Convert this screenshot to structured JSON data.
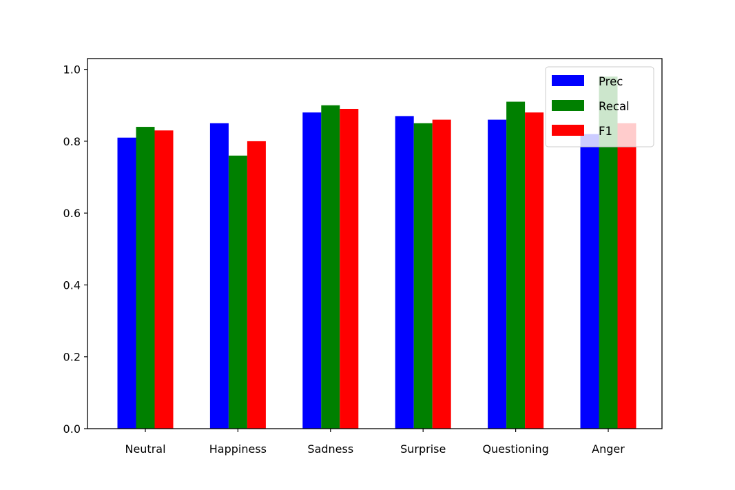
{
  "chart_data": {
    "type": "bar",
    "title": "",
    "xlabel": "",
    "ylabel": "",
    "categories": [
      "Neutral",
      "Happiness",
      "Sadness",
      "Surprise",
      "Questioning",
      "Anger"
    ],
    "series": [
      {
        "name": "Prec",
        "color": "#0000ff",
        "values": [
          0.81,
          0.85,
          0.88,
          0.87,
          0.86,
          0.82
        ]
      },
      {
        "name": "Recal",
        "color": "#008000",
        "values": [
          0.84,
          0.76,
          0.9,
          0.85,
          0.91,
          0.98
        ]
      },
      {
        "name": "F1",
        "color": "#ff0000",
        "values": [
          0.83,
          0.8,
          0.89,
          0.86,
          0.88,
          0.85
        ]
      }
    ],
    "ylim": [
      0.0,
      1.03
    ],
    "yticks": [
      "0.0",
      "0.2",
      "0.4",
      "0.6",
      "0.8",
      "1.0"
    ],
    "grid": false,
    "legend_position": "top-right"
  }
}
